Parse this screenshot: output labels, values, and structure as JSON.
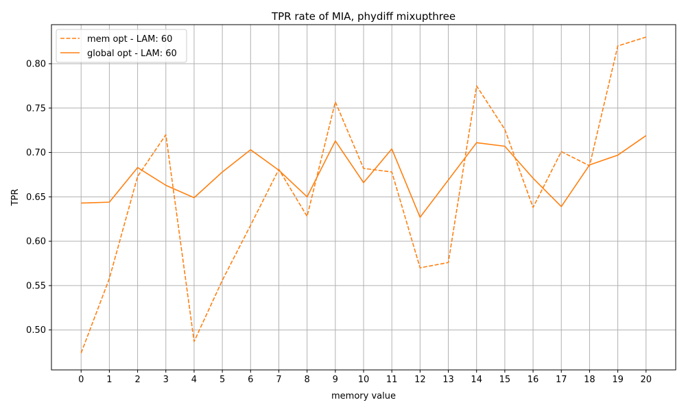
{
  "chart_data": {
    "type": "line",
    "title": "TPR rate of MIA, phydiff mixupthree",
    "xlabel": "memory value",
    "ylabel": "TPR",
    "x": [
      0,
      1,
      2,
      3,
      4,
      5,
      6,
      7,
      8,
      9,
      10,
      11,
      12,
      13,
      14,
      15,
      16,
      17,
      18,
      19,
      20
    ],
    "xticks": [
      "0",
      "1",
      "2",
      "3",
      "4",
      "5",
      "6",
      "7",
      "8",
      "9",
      "10",
      "11",
      "12",
      "13",
      "14",
      "15",
      "16",
      "17",
      "18",
      "19",
      "20"
    ],
    "xlim": [
      -1.05,
      21.05
    ],
    "ylim": [
      0.455,
      0.844
    ],
    "yticks": [
      0.5,
      0.55,
      0.6,
      0.65,
      0.7,
      0.75,
      0.8
    ],
    "ytick_labels": [
      "0.50",
      "0.55",
      "0.60",
      "0.65",
      "0.70",
      "0.75",
      "0.80"
    ],
    "grid": true,
    "legend": "top-left",
    "series": [
      {
        "name": "mem opt - LAM: 60",
        "style": "dashed",
        "color": "#ff7f0e",
        "values": [
          0.474,
          0.558,
          0.673,
          0.72,
          0.487,
          0.556,
          0.618,
          0.681,
          0.628,
          0.757,
          0.682,
          0.678,
          0.57,
          0.576,
          0.775,
          0.726,
          0.638,
          0.701,
          0.685,
          0.82,
          0.83
        ]
      },
      {
        "name": "global opt - LAM: 60",
        "style": "solid",
        "color": "#ff7f0e",
        "values": [
          0.643,
          0.644,
          0.683,
          0.663,
          0.649,
          0.678,
          0.703,
          0.68,
          0.65,
          0.713,
          0.666,
          0.704,
          0.627,
          0.669,
          0.711,
          0.707,
          0.671,
          0.639,
          0.686,
          0.697,
          0.719
        ]
      }
    ]
  }
}
